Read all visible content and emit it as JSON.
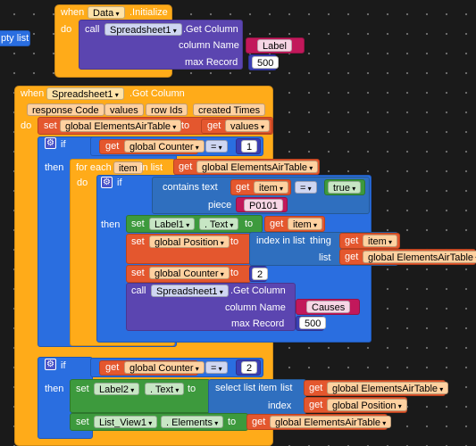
{
  "fragment_left": "pty list",
  "initialize_block": {
    "when": "when",
    "component": "Data",
    "event": ".Initialize",
    "do": "do",
    "call": "call",
    "spreadsheet": "Spreadsheet1",
    "method": ".Get Column",
    "column_name_label": "column Name",
    "column_name_value": "Label",
    "max_record_label": "max Record",
    "max_record_value": "500"
  },
  "gotcolumn_block": {
    "when": "when",
    "component": "Spreadsheet1",
    "event": ".Got Column",
    "params": [
      "response Code",
      "values",
      "row Ids",
      "created Times"
    ],
    "do": "do",
    "set": "set",
    "var_airtable": "global ElementsAirTable",
    "to": "to",
    "get": "get",
    "values": "values"
  },
  "if1": {
    "if": "if",
    "then": "then",
    "get": "get",
    "counter": "global Counter",
    "op": "=",
    "num": "1",
    "foreach": "for each",
    "item": "item",
    "in_list": "in list",
    "list_var": "global ElementsAirTable",
    "do": "do"
  },
  "inner_if": {
    "if": "if",
    "then": "then",
    "contains": "contains",
    "text_label": "text",
    "get": "get",
    "item": "item",
    "op": "=",
    "true": "true",
    "piece_label": "piece",
    "piece_value": "P0101"
  },
  "then_block": {
    "set": "set",
    "label1": "Label1",
    "text_prop": ". Text",
    "to": "to",
    "get": "get",
    "item": "item",
    "position_var": "global Position",
    "index_in_list": "index in list",
    "thing": "thing",
    "list": "list",
    "airtable": "global ElementsAirTable",
    "counter": "global Counter",
    "counter_value": "2",
    "call": "call",
    "spreadsheet": "Spreadsheet1",
    "method": ".Get Column",
    "column_name_label": "column Name",
    "column_name_value": "Causes",
    "max_record_label": "max Record",
    "max_record_value": "500"
  },
  "if2": {
    "if": "if",
    "then": "then",
    "get": "get",
    "counter": "global Counter",
    "op": "=",
    "num": "2",
    "set": "set",
    "label2": "Label2",
    "text_prop": ". Text",
    "to": "to",
    "select_list_item": "select list item",
    "list": "list",
    "airtable": "global ElementsAirTable",
    "index": "index",
    "position": "global Position",
    "listview": "List_View1",
    "elements_prop": ". Elements"
  }
}
